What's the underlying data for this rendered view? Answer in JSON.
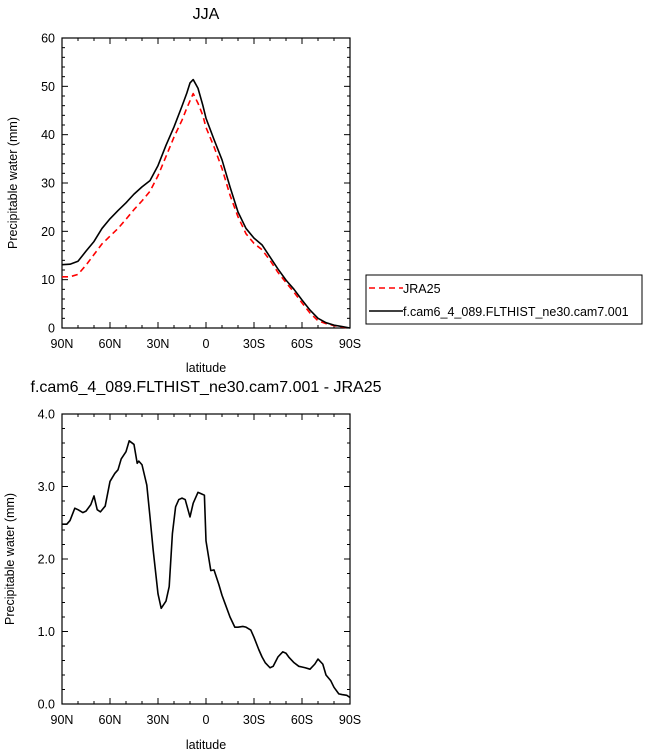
{
  "chart_data": [
    {
      "type": "line",
      "title": "JJA",
      "xlabel": "latitude",
      "ylabel": "Precipitable water (mm)",
      "xlim": [
        90,
        -90
      ],
      "ylim": [
        0,
        60
      ],
      "xticks": [
        90,
        60,
        30,
        0,
        -30,
        -60,
        -90
      ],
      "xtick_labels": [
        "90N",
        "60N",
        "30N",
        "0",
        "30S",
        "60S",
        "90S"
      ],
      "yticks": [
        0,
        10,
        20,
        30,
        40,
        50,
        60
      ],
      "ytick_labels": [
        "0",
        "10",
        "20",
        "30",
        "40",
        "50",
        "60"
      ],
      "legend_position": "right",
      "series": [
        {
          "name": "JRA25",
          "color": "#ff0000",
          "dash": "dashed",
          "x": [
            90,
            85,
            80,
            75,
            70,
            65,
            60,
            55,
            50,
            45,
            40,
            35,
            30,
            25,
            20,
            15,
            12,
            10,
            8,
            5,
            2,
            0,
            -5,
            -10,
            -15,
            -20,
            -25,
            -30,
            -35,
            -40,
            -45,
            -50,
            -55,
            -60,
            -65,
            -70,
            -75,
            -80,
            -85,
            -90
          ],
          "y": [
            10.6,
            10.6,
            11.1,
            13.0,
            15.2,
            17.4,
            19.0,
            20.6,
            22.5,
            24.5,
            26.3,
            28.3,
            31.5,
            35.5,
            39.5,
            43.0,
            45.5,
            47.0,
            48.5,
            46.5,
            44.0,
            41.5,
            37.5,
            33.0,
            27.5,
            23.0,
            19.5,
            17.5,
            16.2,
            14.0,
            11.5,
            9.4,
            7.4,
            5.2,
            3.1,
            1.5,
            0.9,
            0.5,
            0.2,
            0.0
          ]
        },
        {
          "name": "f.cam6_4_089.FLTHIST_ne30.cam7.001",
          "color": "#000000",
          "dash": "solid",
          "x": [
            90,
            85,
            80,
            75,
            70,
            65,
            60,
            55,
            50,
            45,
            40,
            35,
            30,
            25,
            20,
            15,
            12,
            10,
            8,
            5,
            2,
            0,
            -5,
            -10,
            -15,
            -20,
            -25,
            -30,
            -35,
            -40,
            -45,
            -50,
            -55,
            -60,
            -65,
            -70,
            -75,
            -80,
            -85,
            -90
          ],
          "y": [
            13.1,
            13.2,
            13.8,
            15.9,
            17.9,
            20.6,
            22.6,
            24.3,
            25.9,
            27.7,
            29.2,
            30.5,
            33.6,
            37.8,
            41.6,
            45.9,
            48.6,
            50.7,
            51.4,
            49.6,
            46.1,
            43.4,
            39.0,
            34.8,
            29.2,
            24.0,
            20.6,
            18.6,
            17.2,
            14.7,
            12.2,
            9.9,
            8.0,
            5.8,
            3.7,
            2.0,
            1.1,
            0.6,
            0.3,
            0.0
          ]
        }
      ]
    },
    {
      "type": "line",
      "title": "f.cam6_4_089.FLTHIST_ne30.cam7.001 - JRA25",
      "xlabel": "latitude",
      "ylabel": "Precipitable water (mm)",
      "xlim": [
        90,
        -90
      ],
      "ylim": [
        0,
        4
      ],
      "xticks": [
        90,
        60,
        30,
        0,
        -30,
        -60,
        -90
      ],
      "xtick_labels": [
        "90N",
        "60N",
        "30N",
        "0",
        "30S",
        "60S",
        "90S"
      ],
      "yticks": [
        0,
        1,
        2,
        3,
        4
      ],
      "ytick_labels": [
        "0.0",
        "1.0",
        "2.0",
        "3.0",
        "4.0"
      ],
      "series": [
        {
          "color": "#000000",
          "dash": "solid",
          "x": [
            90,
            87,
            85,
            82,
            80,
            77,
            75,
            72,
            70,
            68,
            66,
            63,
            60,
            57,
            55,
            53,
            50,
            48,
            45,
            43,
            42,
            40,
            37,
            35,
            33,
            30,
            28,
            25,
            23,
            21,
            19,
            17,
            15,
            13,
            10,
            8,
            5,
            3,
            1,
            0,
            -3,
            -5,
            -8,
            -10,
            -12,
            -15,
            -18,
            -20,
            -23,
            -25,
            -28,
            -30,
            -33,
            -35,
            -37,
            -40,
            -42,
            -45,
            -48,
            -50,
            -52,
            -55,
            -58,
            -60,
            -62,
            -65,
            -68,
            -70,
            -73,
            -75,
            -78,
            -80,
            -83,
            -85,
            -88,
            -90
          ],
          "y": [
            2.48,
            2.48,
            2.53,
            2.7,
            2.68,
            2.64,
            2.66,
            2.75,
            2.87,
            2.68,
            2.65,
            2.73,
            3.07,
            3.18,
            3.23,
            3.38,
            3.48,
            3.63,
            3.58,
            3.32,
            3.35,
            3.3,
            3.02,
            2.58,
            2.12,
            1.52,
            1.32,
            1.42,
            1.62,
            2.35,
            2.72,
            2.82,
            2.84,
            2.82,
            2.58,
            2.77,
            2.92,
            2.9,
            2.88,
            2.25,
            1.84,
            1.85,
            1.65,
            1.5,
            1.38,
            1.2,
            1.06,
            1.06,
            1.07,
            1.06,
            1.02,
            0.92,
            0.75,
            0.65,
            0.57,
            0.5,
            0.52,
            0.65,
            0.72,
            0.7,
            0.64,
            0.57,
            0.52,
            0.51,
            0.5,
            0.48,
            0.55,
            0.62,
            0.55,
            0.4,
            0.32,
            0.23,
            0.14,
            0.13,
            0.12,
            0.09
          ]
        }
      ]
    }
  ]
}
